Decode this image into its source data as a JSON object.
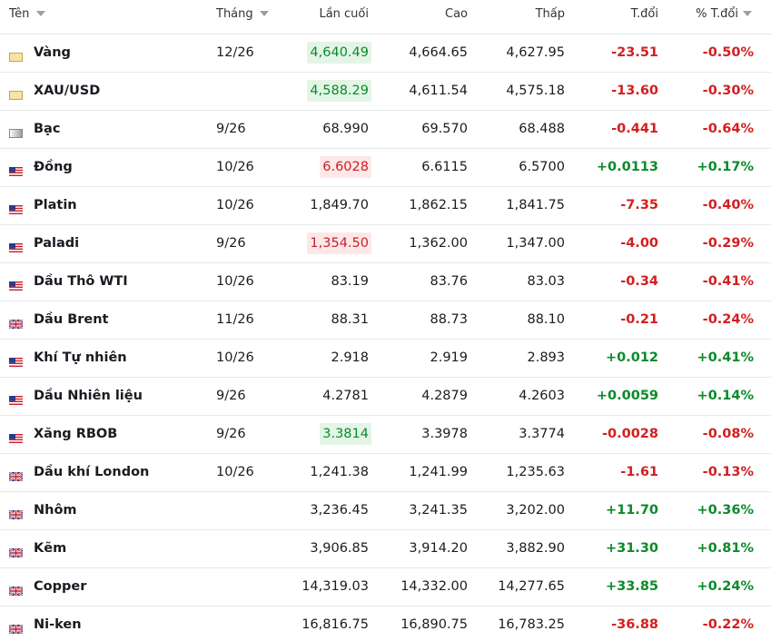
{
  "header": {
    "columns": [
      "Tên",
      "Tháng",
      "Lần cuối",
      "Cao",
      "Thấp",
      "T.đổi",
      "% T.đổi"
    ]
  },
  "table": {
    "rows": [
      {
        "flag": "gold",
        "name": "Vàng",
        "month": "12/26",
        "last": "4,640.49",
        "flash": "up",
        "high": "4,664.65",
        "low": "4,627.95",
        "change": "-23.51",
        "change_pct": "-0.50%"
      },
      {
        "flag": "gold",
        "name": "XAU/USD",
        "last": "4,588.29",
        "flash": "up",
        "high": "4,611.54",
        "low": "4,575.18",
        "change": "-13.60",
        "change_pct": "-0.30%"
      },
      {
        "flag": "silver",
        "name": "Bạc",
        "month": "9/26",
        "last": "68.990",
        "high": "69.570",
        "low": "68.488",
        "change": "-0.441",
        "change_pct": "-0.64%"
      },
      {
        "flag": "us",
        "name": "Đồng",
        "month": "10/26",
        "last": "6.6028",
        "flash": "down",
        "high": "6.6115",
        "low": "6.5700",
        "change": "+0.0113",
        "change_pct": "+0.17%"
      },
      {
        "flag": "us",
        "name": "Platin",
        "month": "10/26",
        "last": "1,849.70",
        "high": "1,862.15",
        "low": "1,841.75",
        "change": "-7.35",
        "change_pct": "-0.40%"
      },
      {
        "flag": "us",
        "name": "Paladi",
        "month": "9/26",
        "last": "1,354.50",
        "flash": "down",
        "high": "1,362.00",
        "low": "1,347.00",
        "change": "-4.00",
        "change_pct": "-0.29%"
      },
      {
        "flag": "us",
        "name": "Dầu Thô WTI",
        "month": "10/26",
        "last": "83.19",
        "high": "83.76",
        "low": "83.03",
        "change": "-0.34",
        "change_pct": "-0.41%"
      },
      {
        "flag": "uk",
        "name": "Dầu Brent",
        "month": "11/26",
        "last": "88.31",
        "high": "88.73",
        "low": "88.10",
        "change": "-0.21",
        "change_pct": "-0.24%"
      },
      {
        "flag": "us",
        "name": "Khí Tự nhiên",
        "month": "10/26",
        "last": "2.918",
        "high": "2.919",
        "low": "2.893",
        "change": "+0.012",
        "change_pct": "+0.41%"
      },
      {
        "flag": "us",
        "name": "Dầu Nhiên liệu",
        "month": "9/26",
        "last": "4.2781",
        "high": "4.2879",
        "low": "4.2603",
        "change": "+0.0059",
        "change_pct": "+0.14%"
      },
      {
        "flag": "us",
        "name": "Xăng RBOB",
        "month": "9/26",
        "last": "3.3814",
        "flash": "up",
        "high": "3.3978",
        "low": "3.3774",
        "change": "-0.0028",
        "change_pct": "-0.08%"
      },
      {
        "flag": "uk",
        "name": "Dầu khí London",
        "month": "10/26",
        "last": "1,241.38",
        "high": "1,241.99",
        "low": "1,235.63",
        "change": "-1.61",
        "change_pct": "-0.13%"
      },
      {
        "flag": "uk",
        "name": "Nhôm",
        "last": "3,236.45",
        "high": "3,241.35",
        "low": "3,202.00",
        "change": "+11.70",
        "change_pct": "+0.36%"
      },
      {
        "flag": "uk",
        "name": "Kẽm",
        "last": "3,906.85",
        "high": "3,914.20",
        "low": "3,882.90",
        "change": "+31.30",
        "change_pct": "+0.81%"
      },
      {
        "flag": "uk",
        "name": "Copper",
        "last": "14,319.03",
        "high": "14,332.00",
        "low": "14,277.65",
        "change": "+33.85",
        "change_pct": "+0.24%"
      },
      {
        "flag": "uk",
        "name": "Ni-ken",
        "last": "16,816.75",
        "high": "16,890.75",
        "low": "16,783.25",
        "change": "-36.88",
        "change_pct": "-0.22%"
      }
    ]
  }
}
